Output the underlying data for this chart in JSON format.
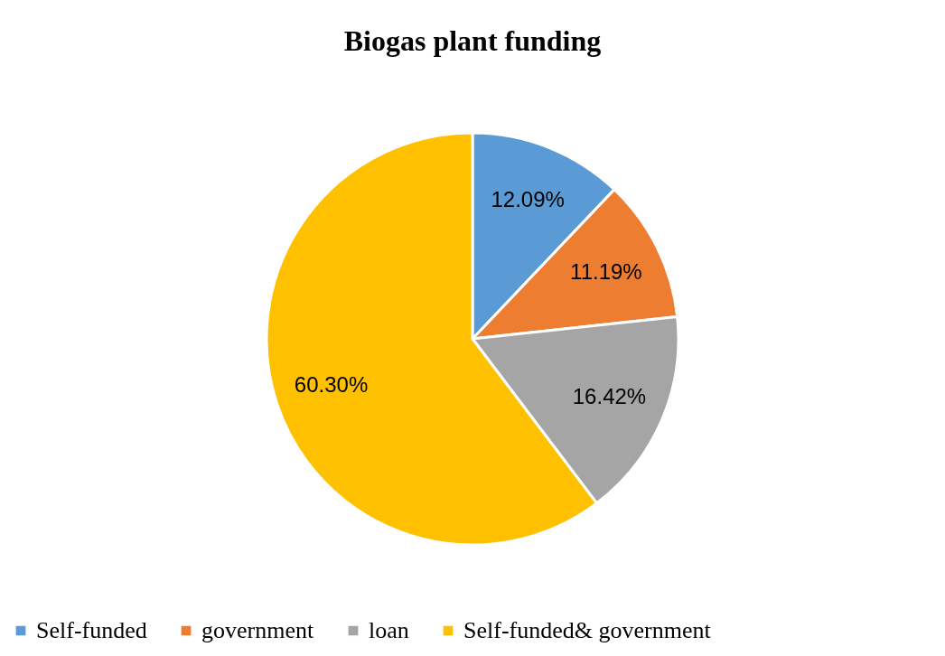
{
  "chart_data": {
    "type": "pie",
    "title": "Biogas plant funding",
    "categories": [
      "Self-funded",
      "government",
      "loan",
      "Self-funded& government"
    ],
    "values": [
      12.09,
      11.19,
      16.42,
      60.3
    ],
    "colors": [
      "#5b9bd5",
      "#ed7d31",
      "#a5a5a5",
      "#ffc000"
    ],
    "value_labels": [
      "12.09%",
      "11.19%",
      "16.42%",
      "60.30%"
    ],
    "legend": "bottom"
  }
}
